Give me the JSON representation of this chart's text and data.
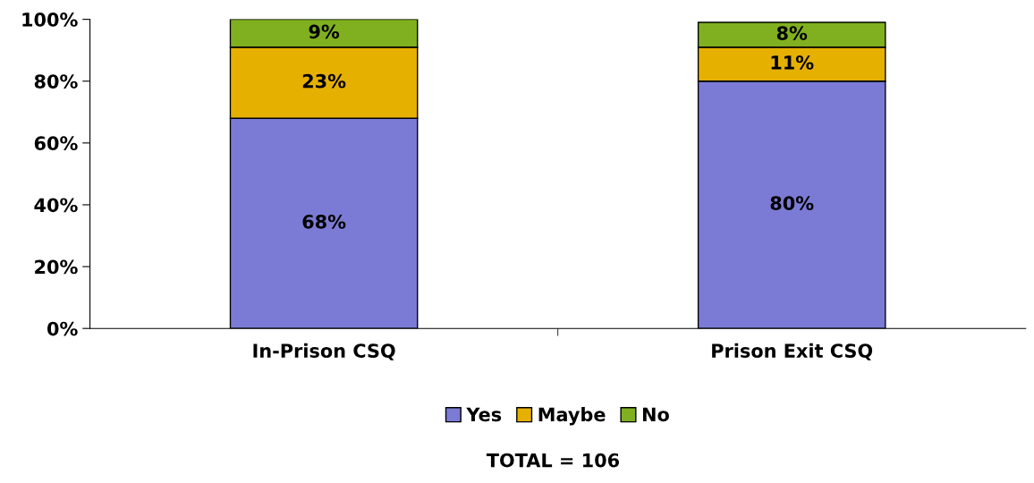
{
  "chart_data": {
    "type": "bar",
    "stacked": true,
    "categories": [
      "In-Prison CSQ",
      "Prison Exit CSQ"
    ],
    "series": [
      {
        "name": "Yes",
        "color": "#7b7bd6",
        "values": [
          68,
          80
        ],
        "value_labels": [
          "68%",
          "80%"
        ]
      },
      {
        "name": "Maybe",
        "color": "#e6b000",
        "values": [
          23,
          11
        ],
        "value_labels": [
          "23%",
          "11%"
        ]
      },
      {
        "name": "No",
        "color": "#80b020",
        "values": [
          9,
          8
        ],
        "value_labels": [
          "9%",
          "8%"
        ]
      }
    ],
    "ylim": [
      0,
      100
    ],
    "yticks": [
      {
        "value": 0,
        "label": "0%"
      },
      {
        "value": 20,
        "label": "20%"
      },
      {
        "value": 40,
        "label": "40%"
      },
      {
        "value": 60,
        "label": "60%"
      },
      {
        "value": 80,
        "label": "80%"
      },
      {
        "value": 100,
        "label": "100%"
      }
    ],
    "grid": false,
    "legend": "bottom",
    "annotations": [
      "TOTAL = 106"
    ]
  }
}
